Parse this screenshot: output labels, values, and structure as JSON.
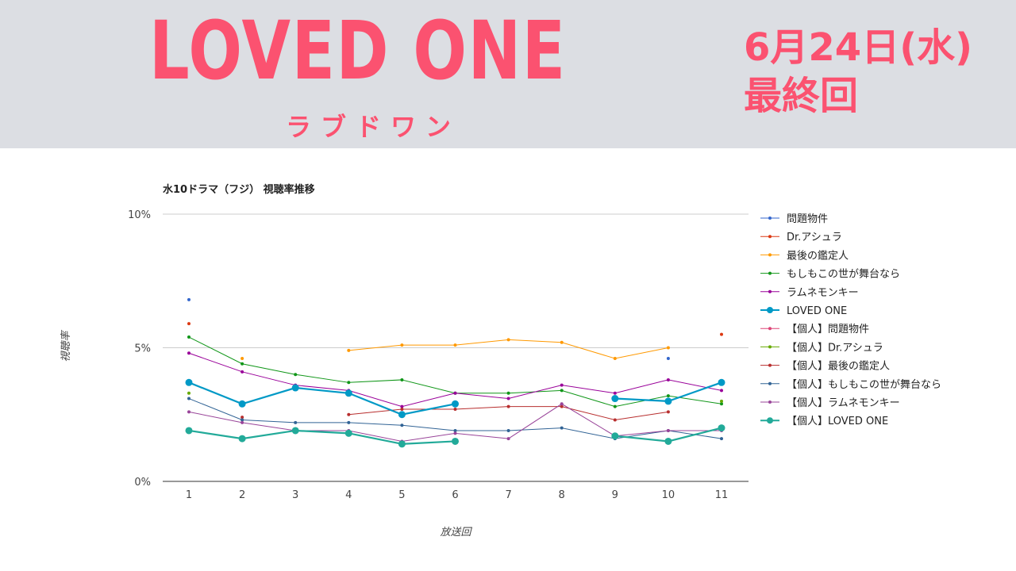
{
  "banner": {
    "logo_title": "LOVED ONE",
    "logo_kana": "ラブドワン",
    "air_date": "6月24日(水)",
    "final_label": "最終回",
    "background_color": "#dcdee3",
    "accent_color": "#fb5270"
  },
  "chart_data": {
    "type": "line",
    "title": "水10ドラマ（フジ） 視聴率推移",
    "xlabel": "放送回",
    "ylabel": "視聴率",
    "x": [
      1,
      2,
      3,
      4,
      5,
      6,
      7,
      8,
      9,
      10,
      11
    ],
    "x_tick_labels": [
      "1",
      "2",
      "3",
      "4",
      "5",
      "6",
      "7",
      "8",
      "9",
      "10",
      "11"
    ],
    "ylim": [
      0,
      10
    ],
    "y_ticks": [
      0,
      5,
      10
    ],
    "y_tick_labels": [
      "0%",
      "5%",
      "10%"
    ],
    "grid": true,
    "legend_position": "right",
    "series": [
      {
        "name": "問題物件",
        "color": "#3366cc",
        "values": [
          6.8,
          null,
          null,
          null,
          null,
          null,
          null,
          null,
          null,
          4.6,
          null
        ]
      },
      {
        "name": "Dr.アシュラ",
        "color": "#dc3912",
        "values": [
          5.9,
          null,
          null,
          null,
          null,
          null,
          null,
          null,
          null,
          null,
          5.5
        ]
      },
      {
        "name": "最後の鑑定人",
        "color": "#ff9900",
        "values": [
          null,
          4.6,
          null,
          4.9,
          5.1,
          5.1,
          5.3,
          5.2,
          4.6,
          5.0,
          null
        ]
      },
      {
        "name": "もしもこの世が舞台なら",
        "color": "#109618",
        "values": [
          5.4,
          4.4,
          4.0,
          3.7,
          3.8,
          3.3,
          3.3,
          3.4,
          2.8,
          3.2,
          2.9
        ]
      },
      {
        "name": "ラムネモンキー",
        "color": "#990099",
        "values": [
          4.8,
          4.1,
          3.6,
          3.4,
          2.8,
          3.3,
          3.1,
          3.6,
          3.3,
          3.8,
          3.4
        ]
      },
      {
        "name": "LOVED ONE",
        "color": "#0099c6",
        "bold": true,
        "values": [
          3.7,
          2.9,
          3.5,
          3.3,
          2.5,
          2.9,
          null,
          null,
          3.1,
          3.0,
          3.7
        ]
      },
      {
        "name": "【個人】問題物件",
        "color": "#dd4477",
        "values": [
          null,
          null,
          null,
          null,
          null,
          null,
          null,
          null,
          null,
          null,
          null
        ]
      },
      {
        "name": "【個人】Dr.アシュラ",
        "color": "#66aa00",
        "values": [
          3.3,
          null,
          null,
          null,
          null,
          null,
          null,
          null,
          null,
          null,
          3.0
        ]
      },
      {
        "name": "【個人】最後の鑑定人",
        "color": "#b82e2e",
        "values": [
          null,
          2.4,
          null,
          2.5,
          2.7,
          2.7,
          2.8,
          2.8,
          2.3,
          2.6,
          null
        ]
      },
      {
        "name": "【個人】もしもこの世が舞台なら",
        "color": "#316395",
        "values": [
          3.1,
          2.3,
          2.2,
          2.2,
          2.1,
          1.9,
          1.9,
          2.0,
          1.6,
          1.9,
          1.6
        ]
      },
      {
        "name": "【個人】ラムネモンキー",
        "color": "#994499",
        "values": [
          2.6,
          2.2,
          1.9,
          1.9,
          1.5,
          1.8,
          1.6,
          2.9,
          1.7,
          1.9,
          1.9
        ]
      },
      {
        "name": "【個人】LOVED ONE",
        "color": "#22aa99",
        "bold": true,
        "values": [
          1.9,
          1.6,
          1.9,
          1.8,
          1.4,
          1.5,
          null,
          null,
          1.7,
          1.5,
          2.0
        ]
      }
    ]
  }
}
